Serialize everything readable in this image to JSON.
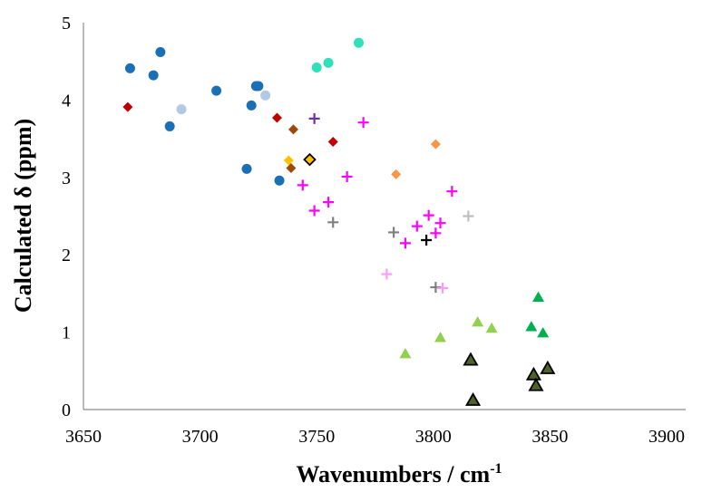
{
  "chart_data": {
    "type": "scatter",
    "title": "",
    "xlabel": "Wavenumbers / cm",
    "xlabel_sup": "-1",
    "ylabel": "Calculated δ (ppm)",
    "xlim": [
      3650,
      3900
    ],
    "ylim": [
      0,
      5
    ],
    "xticks": [
      3650,
      3700,
      3750,
      3800,
      3850,
      3900
    ],
    "yticks": [
      0,
      1,
      2,
      3,
      4,
      5
    ],
    "grid": false,
    "legend": "none",
    "series": [
      {
        "marker": "circle",
        "color": "#1a6fb5",
        "stroke": "none",
        "points": [
          [
            3670,
            4.41
          ],
          [
            3680,
            4.32
          ],
          [
            3683,
            4.62
          ],
          [
            3687,
            3.66
          ],
          [
            3707,
            4.12
          ],
          [
            3720,
            3.11
          ],
          [
            3722,
            3.93
          ],
          [
            3724,
            4.18
          ],
          [
            3725,
            4.18
          ],
          [
            3734,
            2.96
          ]
        ]
      },
      {
        "marker": "circle",
        "color": "#b3c8e3",
        "stroke": "none",
        "points": [
          [
            3692,
            3.88
          ],
          [
            3728,
            4.06
          ]
        ]
      },
      {
        "marker": "circle",
        "color": "#2fe0b8",
        "stroke": "none",
        "points": [
          [
            3750,
            4.42
          ],
          [
            3755,
            4.48
          ],
          [
            3768,
            4.74
          ]
        ]
      },
      {
        "marker": "diamond",
        "color": "#c00000",
        "stroke": "none",
        "points": [
          [
            3669,
            3.91
          ],
          [
            3733,
            3.77
          ],
          [
            3757,
            3.46
          ]
        ]
      },
      {
        "marker": "diamond",
        "color": "#9c4a0c",
        "stroke": "none",
        "points": [
          [
            3739,
            3.12
          ],
          [
            3740,
            3.62
          ]
        ]
      },
      {
        "marker": "diamond",
        "color": "#ffc000",
        "stroke": "none",
        "points": [
          [
            3738,
            3.22
          ]
        ]
      },
      {
        "marker": "diamond",
        "color": "#ffc000",
        "stroke": "#000000",
        "points": [
          [
            3747,
            3.23
          ]
        ]
      },
      {
        "marker": "diamond",
        "color": "#f79646",
        "stroke": "none",
        "points": [
          [
            3784,
            3.04
          ],
          [
            3801,
            3.43
          ]
        ]
      },
      {
        "marker": "plus",
        "color": "#7030a0",
        "points": [
          [
            3749,
            3.76
          ]
        ]
      },
      {
        "marker": "plus",
        "color": "#ff00ff",
        "points": [
          [
            3744,
            2.9
          ],
          [
            3749,
            2.57
          ],
          [
            3755,
            2.68
          ],
          [
            3763,
            3.01
          ],
          [
            3770,
            3.71
          ],
          [
            3788,
            2.15
          ],
          [
            3793,
            2.37
          ],
          [
            3798,
            2.51
          ],
          [
            3801,
            2.28
          ],
          [
            3803,
            2.41
          ],
          [
            3808,
            2.82
          ]
        ]
      },
      {
        "marker": "plus",
        "color": "#808080",
        "points": [
          [
            3757,
            2.42
          ],
          [
            3783,
            2.29
          ],
          [
            3801,
            1.58
          ]
        ]
      },
      {
        "marker": "plus",
        "color": "#bfbfbf",
        "points": [
          [
            3815,
            2.5
          ]
        ]
      },
      {
        "marker": "plus",
        "color": "#000000",
        "points": [
          [
            3797,
            2.19
          ]
        ]
      },
      {
        "marker": "plus",
        "color": "#ff99ff",
        "points": [
          [
            3780,
            1.75
          ],
          [
            3804,
            1.57
          ]
        ]
      },
      {
        "marker": "triangle",
        "color": "#92d050",
        "stroke": "none",
        "points": [
          [
            3788,
            0.72
          ],
          [
            3803,
            0.93
          ],
          [
            3819,
            1.13
          ],
          [
            3825,
            1.05
          ]
        ]
      },
      {
        "marker": "triangle",
        "color": "#00b050",
        "stroke": "none",
        "points": [
          [
            3842,
            1.07
          ],
          [
            3845,
            1.45
          ],
          [
            3847,
            0.99
          ]
        ]
      },
      {
        "marker": "triangle",
        "color": "#4f6228",
        "stroke": "#000000",
        "points": [
          [
            3816,
            0.64
          ],
          [
            3817,
            0.12
          ],
          [
            3843,
            0.45
          ],
          [
            3844,
            0.31
          ],
          [
            3849,
            0.53
          ]
        ]
      }
    ]
  }
}
